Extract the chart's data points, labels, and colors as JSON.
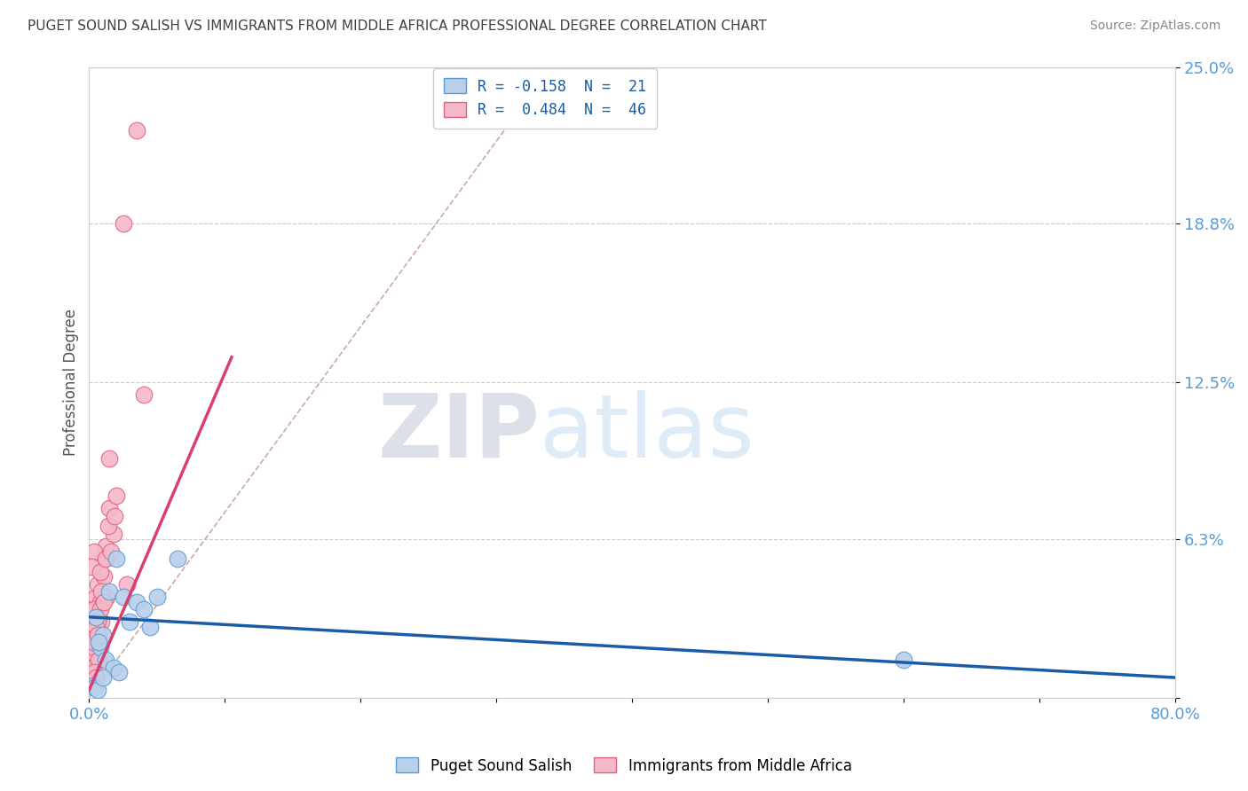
{
  "title": "PUGET SOUND SALISH VS IMMIGRANTS FROM MIDDLE AFRICA PROFESSIONAL DEGREE CORRELATION CHART",
  "source": "Source: ZipAtlas.com",
  "ylabel": "Professional Degree",
  "ytick_values": [
    0,
    6.3,
    12.5,
    18.8,
    25.0
  ],
  "xmin": 0.0,
  "xmax": 80.0,
  "ymin": 0.0,
  "ymax": 25.0,
  "series1_name": "Puget Sound Salish",
  "series1_color": "#b8d0ea",
  "series1_edge_color": "#5b9bd5",
  "series1_R": -0.158,
  "series1_N": 21,
  "series1_line_color": "#1a5ca8",
  "series2_name": "Immigrants from Middle Africa",
  "series2_color": "#f5b8c8",
  "series2_edge_color": "#e06080",
  "series2_R": 0.484,
  "series2_N": 46,
  "series2_line_color": "#d94070",
  "legend_R1_text": "R = -0.158  N =  21",
  "legend_R2_text": "R =  0.484  N =  46",
  "watermark_zip": "ZIP",
  "watermark_atlas": "atlas",
  "background_color": "#ffffff",
  "grid_color": "#cccccc",
  "title_color": "#404040",
  "axis_label_color": "#5b9bd5",
  "blue_scatter_x": [
    0.5,
    0.8,
    1.0,
    1.2,
    1.5,
    1.8,
    2.0,
    2.2,
    2.5,
    3.0,
    3.5,
    4.0,
    4.5,
    5.0,
    6.5,
    0.3,
    0.4,
    0.6,
    1.0,
    60.0,
    0.7
  ],
  "blue_scatter_y": [
    3.2,
    2.0,
    2.5,
    1.5,
    4.2,
    1.2,
    5.5,
    1.0,
    4.0,
    3.0,
    3.8,
    3.5,
    2.8,
    4.0,
    5.5,
    0.5,
    0.4,
    0.3,
    0.8,
    1.5,
    2.2
  ],
  "pink_scatter_x": [
    0.3,
    0.5,
    0.8,
    1.0,
    1.2,
    0.4,
    0.6,
    1.5,
    0.2,
    0.9,
    1.1,
    0.7,
    0.3,
    0.5,
    1.8,
    2.0,
    1.3,
    0.4,
    0.6,
    0.8,
    1.0,
    0.2,
    0.5,
    1.5,
    2.5,
    3.5,
    1.2,
    0.3,
    0.7,
    4.0,
    0.6,
    0.9,
    1.6,
    0.4,
    0.2,
    0.8,
    1.4,
    0.5,
    0.3,
    2.8,
    0.7,
    1.1,
    0.6,
    1.9,
    0.4,
    0.5
  ],
  "pink_scatter_y": [
    3.5,
    4.0,
    3.8,
    5.5,
    6.0,
    5.8,
    4.5,
    7.5,
    5.2,
    3.0,
    4.8,
    3.2,
    2.5,
    2.8,
    6.5,
    8.0,
    4.0,
    3.5,
    2.2,
    5.0,
    3.8,
    2.0,
    1.5,
    9.5,
    18.8,
    22.5,
    5.5,
    1.8,
    2.5,
    12.0,
    3.0,
    4.2,
    5.8,
    2.0,
    1.2,
    3.5,
    6.8,
    2.8,
    2.2,
    4.5,
    1.5,
    3.8,
    2.5,
    7.2,
    1.0,
    0.8
  ],
  "blue_trendline_x0": 0.0,
  "blue_trendline_y0": 3.2,
  "blue_trendline_x1": 80.0,
  "blue_trendline_y1": 0.8,
  "pink_trendline_x0": 0.0,
  "pink_trendline_y0": 0.3,
  "pink_trendline_x1": 10.5,
  "pink_trendline_y1": 13.5,
  "diag_color": "#ccaaaa",
  "diag_x0": 0.0,
  "diag_y0": 0.0,
  "diag_x1": 34.0,
  "diag_y1": 25.0
}
